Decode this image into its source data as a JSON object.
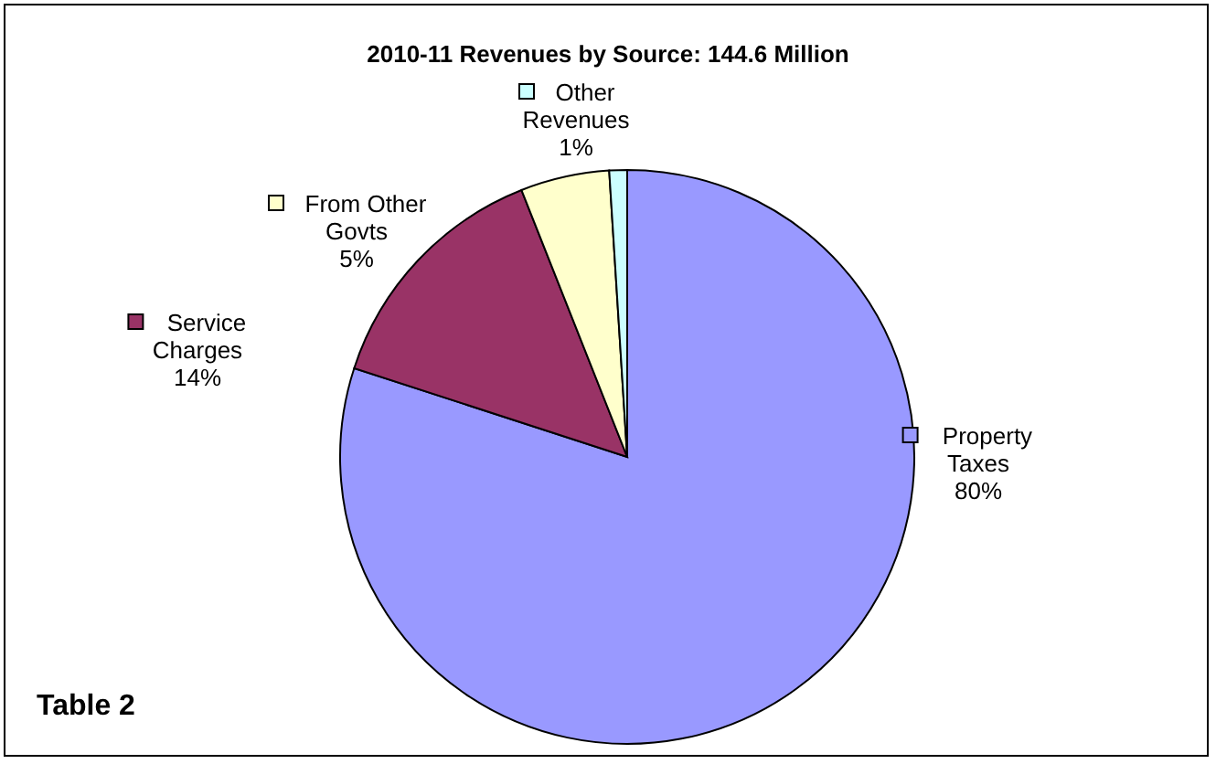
{
  "chart_data": {
    "type": "pie",
    "title": "2010-11 Revenues by Source: 144.6 Million",
    "categories": [
      "Property Taxes",
      "Service Charges",
      "From Other Govts",
      "Other Revenues"
    ],
    "values": [
      80,
      14,
      5,
      1
    ],
    "value_labels": [
      "80%",
      "14%",
      "5%",
      "1%"
    ],
    "colors": [
      "#9999ff",
      "#993366",
      "#ffffcc",
      "#ccffff"
    ],
    "legend": "top left",
    "annotations": [
      "Table 2"
    ]
  }
}
